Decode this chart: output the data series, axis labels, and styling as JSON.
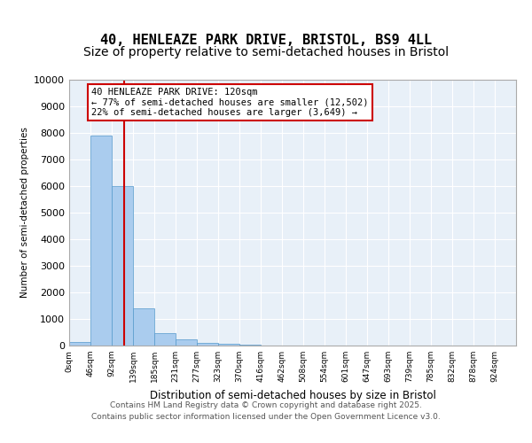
{
  "title_line1": "40, HENLEAZE PARK DRIVE, BRISTOL, BS9 4LL",
  "title_line2": "Size of property relative to semi-detached houses in Bristol",
  "xlabel": "Distribution of semi-detached houses by size in Bristol",
  "ylabel": "Number of semi-detached properties",
  "bar_values": [
    120,
    7900,
    6000,
    1400,
    480,
    220,
    110,
    80,
    50,
    0,
    0,
    0,
    0,
    0,
    0,
    0,
    0,
    0,
    0,
    0
  ],
  "bin_labels": [
    "0sqm",
    "46sqm",
    "92sqm",
    "139sqm",
    "185sqm",
    "231sqm",
    "277sqm",
    "323sqm",
    "370sqm",
    "416sqm",
    "462sqm",
    "508sqm",
    "554sqm",
    "601sqm",
    "647sqm",
    "693sqm",
    "739sqm",
    "785sqm",
    "832sqm",
    "878sqm",
    "924sqm"
  ],
  "bin_edges": [
    0,
    46,
    92,
    139,
    185,
    231,
    277,
    323,
    370,
    416,
    462,
    508,
    554,
    601,
    647,
    693,
    739,
    785,
    832,
    878,
    924
  ],
  "bar_color": "#aaccee",
  "bar_edge_color": "#5599cc",
  "property_size": 120,
  "red_line_x": 120,
  "annotation_text": "40 HENLEAZE PARK DRIVE: 120sqm\n← 77% of semi-detached houses are smaller (12,502)\n22% of semi-detached houses are larger (3,649) →",
  "annotation_box_color": "#ffffff",
  "annotation_box_edge": "#cc0000",
  "red_line_color": "#cc0000",
  "ylim": [
    0,
    10000
  ],
  "yticks": [
    0,
    1000,
    2000,
    3000,
    4000,
    5000,
    6000,
    7000,
    8000,
    9000,
    10000
  ],
  "background_color": "#e8f0f8",
  "grid_color": "#ffffff",
  "footer_line1": "Contains HM Land Registry data © Crown copyright and database right 2025.",
  "footer_line2": "Contains public sector information licensed under the Open Government Licence v3.0.",
  "title_fontsize": 11,
  "subtitle_fontsize": 10
}
